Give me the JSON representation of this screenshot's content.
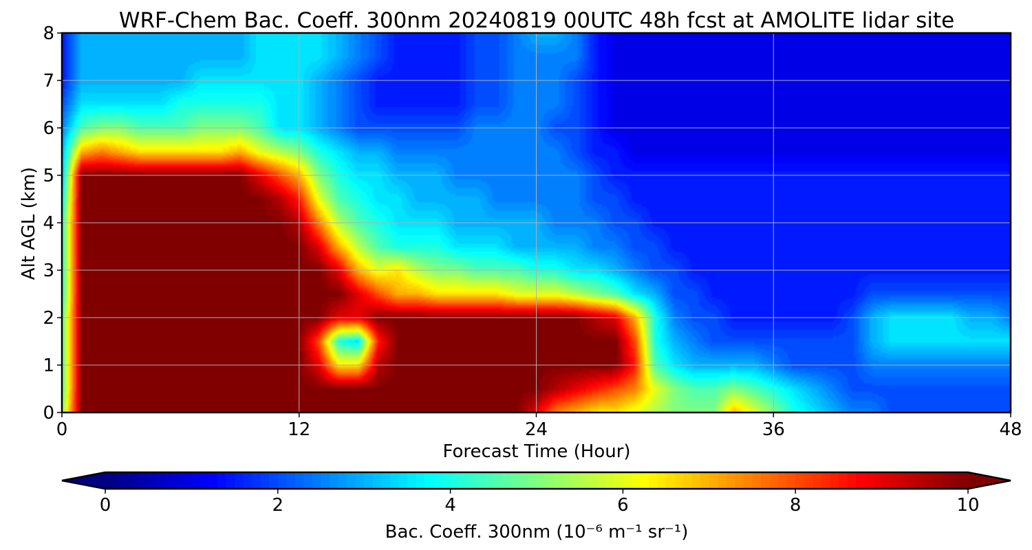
{
  "chart_data": {
    "type": "heatmap",
    "title": "WRF-Chem Bac. Coeff. 300nm  20240819 00UTC 48h fcst at AMOLITE lidar site",
    "xlabel": "Forecast Time (Hour)",
    "ylabel": "Alt AGL (km)",
    "xlim": [
      0,
      48
    ],
    "ylim": [
      0,
      8
    ],
    "xticks": [
      0,
      12,
      24,
      36,
      48
    ],
    "yticks": [
      0,
      1,
      2,
      3,
      4,
      5,
      6,
      7,
      8
    ],
    "grid": true,
    "colormap": "jet",
    "colorbar": {
      "label_main": "Bac. Coeff. 300nm",
      "label_units": "10⁻⁶ m⁻¹ sr⁻¹",
      "min": 0,
      "max": 10,
      "ticks": [
        0,
        2,
        4,
        6,
        8,
        10
      ],
      "extend": "both",
      "placement": "bottom"
    },
    "x_hours": [
      0,
      1,
      2,
      3,
      4,
      5,
      6,
      7,
      8,
      9,
      10,
      11,
      12,
      13,
      14,
      15,
      16,
      17,
      18,
      19,
      20,
      21,
      22,
      23,
      24,
      25,
      26,
      27,
      28,
      29,
      30,
      31,
      32,
      33,
      34,
      35,
      36,
      37,
      38,
      39,
      40,
      41,
      42,
      43,
      44,
      45,
      46,
      47,
      48
    ],
    "y_km": [
      0,
      0.5,
      1,
      1.5,
      2,
      2.5,
      3,
      3.5,
      4,
      4.5,
      5,
      5.5,
      6,
      6.5,
      7,
      7.5,
      8
    ],
    "values": [
      [
        5.0,
        10,
        10,
        10,
        10,
        10,
        10,
        10,
        10,
        10,
        10,
        10,
        10,
        10,
        10,
        10,
        10,
        10,
        10,
        10,
        10,
        10,
        10,
        10,
        9.0,
        7.5,
        7.0,
        6.5,
        6.5,
        6.0,
        5.5,
        5.0,
        5.0,
        5.0,
        7.0,
        6.0,
        5.0,
        4.0,
        3.5,
        3.0,
        2.5,
        2.5,
        2.0,
        2.0,
        2.0,
        2.0,
        2.0,
        2.0,
        2.0
      ],
      [
        4.5,
        10,
        10,
        10,
        10,
        10,
        10,
        10,
        10,
        10,
        10,
        10,
        10,
        10,
        10,
        10,
        10,
        10,
        10,
        10,
        10,
        10,
        10,
        10,
        10,
        9.5,
        9.0,
        8.5,
        8.0,
        7.5,
        6.0,
        5.0,
        4.5,
        4.5,
        5.0,
        4.5,
        4.0,
        3.5,
        3.0,
        2.5,
        2.0,
        2.0,
        2.0,
        2.0,
        2.0,
        2.0,
        2.0,
        2.0,
        2.0
      ],
      [
        4.5,
        10,
        10,
        10,
        10,
        10,
        10,
        10,
        10,
        10,
        10,
        10,
        10,
        9.0,
        6.5,
        6.5,
        9.5,
        10,
        10,
        10,
        10,
        10,
        10,
        10,
        10,
        10,
        10,
        10,
        10,
        8.5,
        4.5,
        3.5,
        3.0,
        3.0,
        3.0,
        3.0,
        2.5,
        2.0,
        2.0,
        2.0,
        2.0,
        2.5,
        2.5,
        2.5,
        2.5,
        2.5,
        2.5,
        2.5,
        2.5
      ],
      [
        4.5,
        10,
        10,
        10,
        10,
        10,
        10,
        10,
        10,
        10,
        10,
        10,
        10,
        8.0,
        4.0,
        3.5,
        8.5,
        10,
        10,
        10,
        10,
        10,
        10,
        10,
        10,
        10,
        10,
        10,
        10,
        8.0,
        4.0,
        3.0,
        2.5,
        2.0,
        2.0,
        2.0,
        2.0,
        2.0,
        2.0,
        2.0,
        2.0,
        3.0,
        3.5,
        3.5,
        3.5,
        3.5,
        3.5,
        3.5,
        3.5
      ],
      [
        4.5,
        10,
        10,
        10,
        10,
        10,
        10,
        10,
        10,
        10,
        10,
        10,
        10,
        10,
        9.0,
        9.0,
        10,
        10,
        10,
        10,
        10,
        10,
        10,
        10,
        10,
        10,
        10,
        9.5,
        9.0,
        7.0,
        4.0,
        2.5,
        2.0,
        2.0,
        1.5,
        1.5,
        1.5,
        1.5,
        1.5,
        1.5,
        2.0,
        3.0,
        3.5,
        3.5,
        3.5,
        3.5,
        3.0,
        3.0,
        2.5
      ],
      [
        4.0,
        10,
        10,
        10,
        10,
        10,
        10,
        10,
        10,
        10,
        10,
        10,
        10,
        10,
        10,
        9.0,
        8.0,
        7.0,
        7.0,
        6.5,
        6.5,
        6.5,
        6.5,
        6.0,
        6.0,
        6.0,
        5.5,
        5.0,
        4.5,
        3.5,
        3.0,
        2.0,
        2.0,
        1.5,
        1.5,
        1.5,
        1.5,
        1.5,
        1.5,
        1.5,
        1.5,
        2.0,
        2.0,
        2.0,
        2.0,
        2.0,
        2.0,
        2.0,
        2.0
      ],
      [
        4.0,
        10,
        10,
        10,
        10,
        10,
        10,
        10,
        10,
        10,
        10,
        10,
        10,
        10,
        9.0,
        7.0,
        6.0,
        6.5,
        5.5,
        5.0,
        5.0,
        4.5,
        4.5,
        4.5,
        4.0,
        4.0,
        3.5,
        3.5,
        3.0,
        2.5,
        2.0,
        2.0,
        1.5,
        1.5,
        1.5,
        1.5,
        1.5,
        1.5,
        1.5,
        1.5,
        1.5,
        1.5,
        1.5,
        1.5,
        1.5,
        1.5,
        1.5,
        1.5,
        1.5
      ],
      [
        4.0,
        10,
        10,
        10,
        10,
        10,
        10,
        10,
        10,
        10,
        10,
        10,
        10,
        9.0,
        7.0,
        5.5,
        4.5,
        4.0,
        4.0,
        4.0,
        3.5,
        3.5,
        3.5,
        3.0,
        3.0,
        3.0,
        3.0,
        2.5,
        2.5,
        2.0,
        2.0,
        1.5,
        1.5,
        1.5,
        1.5,
        1.5,
        1.5,
        1.5,
        1.5,
        1.5,
        1.5,
        1.5,
        1.5,
        1.5,
        1.5,
        1.5,
        1.5,
        1.5,
        1.5
      ],
      [
        4.0,
        10,
        10,
        10,
        10,
        10,
        10,
        10,
        10,
        10,
        10,
        10,
        9.5,
        7.5,
        5.5,
        4.5,
        4.0,
        3.5,
        3.5,
        3.5,
        3.0,
        3.0,
        3.0,
        3.0,
        3.0,
        2.5,
        2.5,
        2.5,
        2.0,
        2.0,
        1.5,
        1.5,
        1.5,
        1.5,
        1.5,
        1.5,
        1.5,
        1.5,
        1.5,
        1.5,
        1.5,
        1.5,
        1.5,
        1.5,
        1.5,
        1.5,
        1.5,
        1.5,
        1.5
      ],
      [
        3.5,
        10,
        10,
        10,
        10,
        10,
        10,
        10,
        10,
        10,
        10,
        9.5,
        8.5,
        6.0,
        4.5,
        4.0,
        3.5,
        3.5,
        3.0,
        3.0,
        3.0,
        3.0,
        2.5,
        2.5,
        2.5,
        2.5,
        2.5,
        2.0,
        2.0,
        1.5,
        1.5,
        1.5,
        1.5,
        1.5,
        1.5,
        1.5,
        1.5,
        1.5,
        1.5,
        1.5,
        1.5,
        1.5,
        1.5,
        1.5,
        1.5,
        1.5,
        1.5,
        1.5,
        1.5
      ],
      [
        3.0,
        10,
        10,
        10,
        10,
        10,
        10,
        10,
        10,
        10,
        9.0,
        8.0,
        7.0,
        5.0,
        4.0,
        3.5,
        3.5,
        3.0,
        3.0,
        3.0,
        2.5,
        2.5,
        2.5,
        2.5,
        2.5,
        2.5,
        2.5,
        2.0,
        1.5,
        1.5,
        1.5,
        1.5,
        1.5,
        1.5,
        1.5,
        1.5,
        1.5,
        1.5,
        1.5,
        1.5,
        1.5,
        1.5,
        1.5,
        1.5,
        1.5,
        1.5,
        1.5,
        1.5,
        1.5
      ],
      [
        3.0,
        7.0,
        7.5,
        7.0,
        6.5,
        6.5,
        6.5,
        6.5,
        6.5,
        7.0,
        6.0,
        5.5,
        5.0,
        4.0,
        3.5,
        3.0,
        3.0,
        2.5,
        2.5,
        2.5,
        2.5,
        2.5,
        2.5,
        2.5,
        2.5,
        2.5,
        2.0,
        1.5,
        1.5,
        1.0,
        1.0,
        1.0,
        1.0,
        1.0,
        1.0,
        1.0,
        1.0,
        1.0,
        1.0,
        1.0,
        1.0,
        1.0,
        1.0,
        1.0,
        1.0,
        1.0,
        1.0,
        1.0,
        1.0
      ],
      [
        2.5,
        4.5,
        5.0,
        5.0,
        4.5,
        4.5,
        4.5,
        5.0,
        5.0,
        5.0,
        4.5,
        3.5,
        3.5,
        3.0,
        2.5,
        2.0,
        2.0,
        2.0,
        2.0,
        2.0,
        2.0,
        2.5,
        2.5,
        2.5,
        2.5,
        2.0,
        2.0,
        1.5,
        1.0,
        1.0,
        1.0,
        1.0,
        1.0,
        1.0,
        1.0,
        1.0,
        1.0,
        1.0,
        1.0,
        1.0,
        1.0,
        1.0,
        1.0,
        1.0,
        1.0,
        1.0,
        1.0,
        1.0,
        1.0
      ],
      [
        2.0,
        3.5,
        3.5,
        3.5,
        3.5,
        3.5,
        4.0,
        4.0,
        4.0,
        4.0,
        4.0,
        3.5,
        3.5,
        3.0,
        2.5,
        2.0,
        1.5,
        1.5,
        1.5,
        1.5,
        1.5,
        2.0,
        2.0,
        2.5,
        2.5,
        2.5,
        2.0,
        1.5,
        1.0,
        1.0,
        1.0,
        1.0,
        1.0,
        1.0,
        1.0,
        1.0,
        1.0,
        1.0,
        1.0,
        1.0,
        1.0,
        1.0,
        1.0,
        1.0,
        1.0,
        1.0,
        1.0,
        1.0,
        1.0
      ],
      [
        1.5,
        3.0,
        3.0,
        3.0,
        3.0,
        3.0,
        3.0,
        3.5,
        3.5,
        3.5,
        3.5,
        3.5,
        3.5,
        3.0,
        2.5,
        2.0,
        1.5,
        1.5,
        1.5,
        1.5,
        1.5,
        2.0,
        2.0,
        2.5,
        2.5,
        2.5,
        2.0,
        1.5,
        1.0,
        1.0,
        1.0,
        1.0,
        1.0,
        1.0,
        1.0,
        1.0,
        1.0,
        1.0,
        1.0,
        1.0,
        1.0,
        1.0,
        1.0,
        1.0,
        1.0,
        1.0,
        1.0,
        1.0,
        1.0
      ],
      [
        1.5,
        3.0,
        3.0,
        3.0,
        3.0,
        3.0,
        3.0,
        3.0,
        3.0,
        3.0,
        3.5,
        3.5,
        3.5,
        3.5,
        3.0,
        2.5,
        2.0,
        1.5,
        1.5,
        1.5,
        1.5,
        2.0,
        2.0,
        2.5,
        2.5,
        2.5,
        2.5,
        1.5,
        1.0,
        1.0,
        1.0,
        1.0,
        1.0,
        1.0,
        1.0,
        1.0,
        1.0,
        1.0,
        1.0,
        1.0,
        1.0,
        1.0,
        1.0,
        1.0,
        1.0,
        1.0,
        1.0,
        1.0,
        1.0
      ],
      [
        1.5,
        3.0,
        3.0,
        3.0,
        3.0,
        3.0,
        3.0,
        3.0,
        3.0,
        3.0,
        3.5,
        3.5,
        3.5,
        3.5,
        3.0,
        2.5,
        2.0,
        1.5,
        1.5,
        1.5,
        1.5,
        2.0,
        2.0,
        2.5,
        3.0,
        3.0,
        2.5,
        1.5,
        1.0,
        1.0,
        1.0,
        1.0,
        1.0,
        1.0,
        1.0,
        1.0,
        1.0,
        1.0,
        1.0,
        1.0,
        1.0,
        1.0,
        1.0,
        1.0,
        1.0,
        1.0,
        1.0,
        1.0,
        1.0
      ]
    ]
  }
}
